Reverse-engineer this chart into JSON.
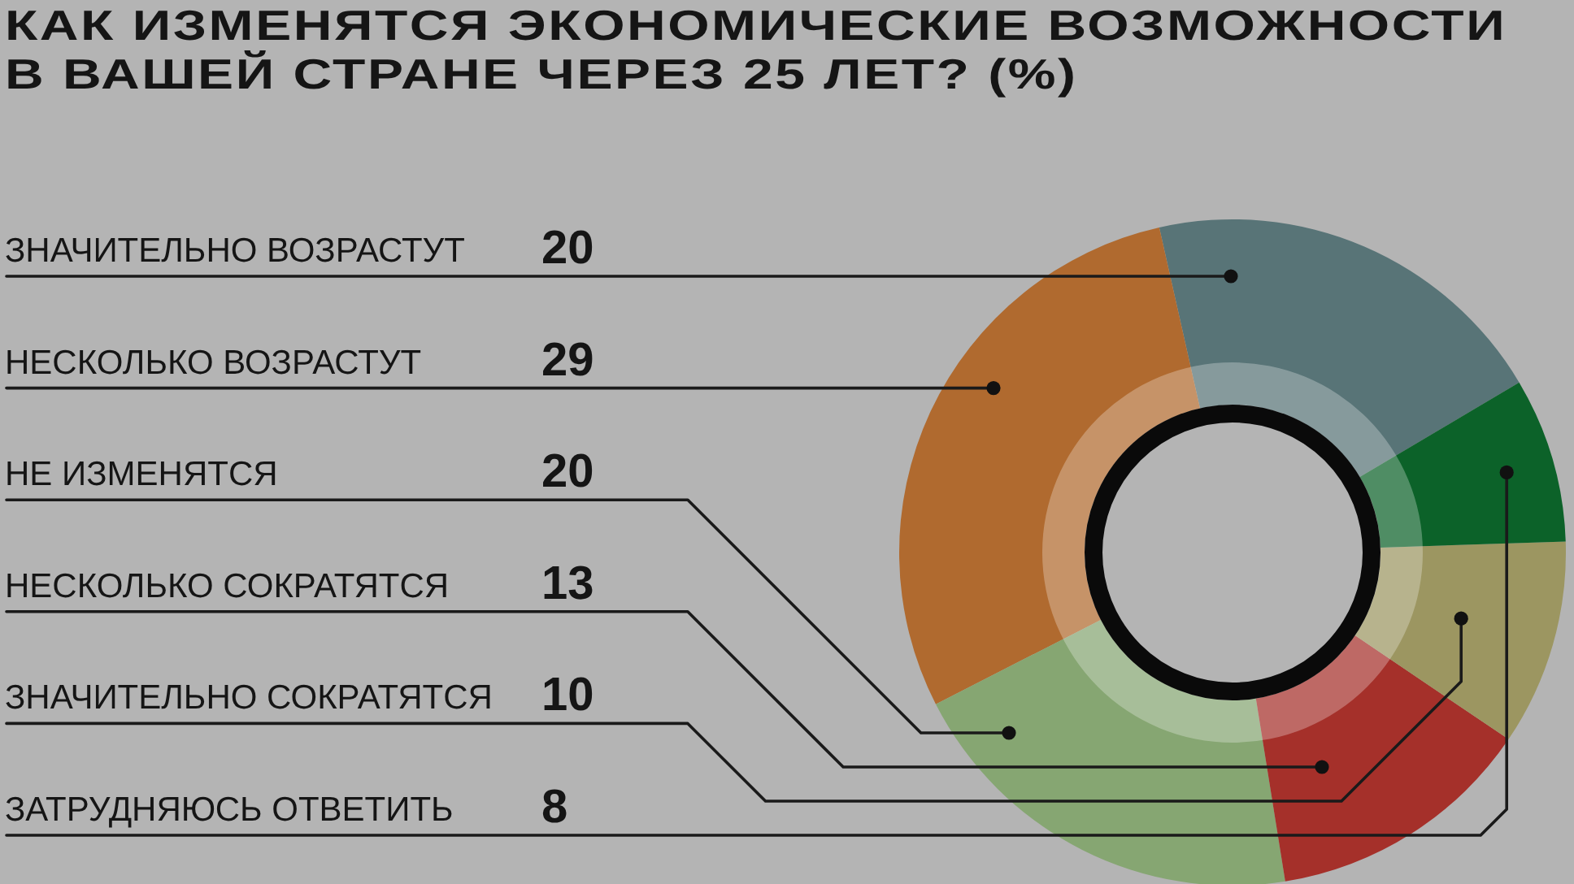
{
  "chart_data": {
    "type": "donut",
    "title": "КАК ИЗМЕНЯТСЯ ЭКОНОМИЧЕСКИЕ ВОЗМОЖНОСТИ В ВАШЕЙ СТРАНЕ ЧЕРЕЗ 25 ЛЕТ? (%)",
    "categories": [
      "ЗНАЧИТЕЛЬНО ВОЗРАСТУТ",
      "НЕСКОЛЬКО ВОЗРАСТУТ",
      "НЕ ИЗМЕНЯТСЯ",
      "НЕСКОЛЬКО СОКРАТЯТСЯ",
      "ЗНАЧИТЕЛЬНО СОКРАТЯТСЯ",
      "ЗАТРУДНЯЮСЬ ОТВЕТИТЬ"
    ],
    "values": [
      20,
      29,
      20,
      13,
      10,
      8
    ],
    "colors": [
      "#587477",
      "#b06a2f",
      "#86a672",
      "#a5302a",
      "#9c9661",
      "#0c6229"
    ],
    "data_labels": true
  }
}
